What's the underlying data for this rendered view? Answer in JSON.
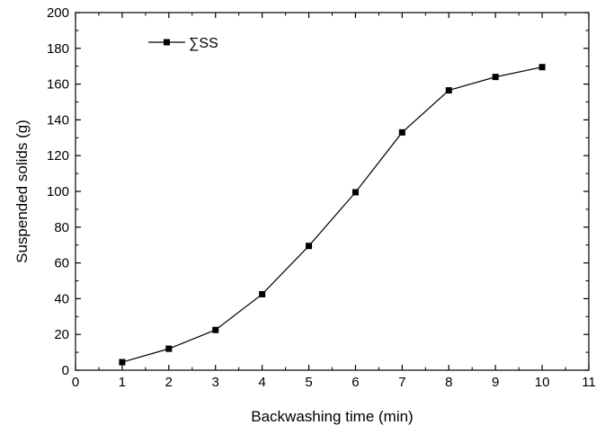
{
  "chart_data": {
    "type": "line",
    "title": "",
    "xlabel": "Backwashing time (min)",
    "ylabel": "Suspended solids (g)",
    "xlim": [
      0,
      11
    ],
    "ylim": [
      0,
      200
    ],
    "xticks": [
      0,
      1,
      2,
      3,
      4,
      5,
      6,
      7,
      8,
      9,
      10,
      11
    ],
    "yticks": [
      0,
      20,
      40,
      60,
      80,
      100,
      120,
      140,
      160,
      180,
      200
    ],
    "grid": false,
    "legend_position": "top-left",
    "series": [
      {
        "name": "∑SS",
        "color": "#000000",
        "marker": "square",
        "x": [
          1,
          2,
          3,
          4,
          5,
          6,
          7,
          8,
          9,
          10
        ],
        "y": [
          4.5,
          12,
          22.5,
          42.5,
          69.5,
          99.5,
          133,
          156.5,
          164,
          169.5
        ]
      }
    ]
  }
}
